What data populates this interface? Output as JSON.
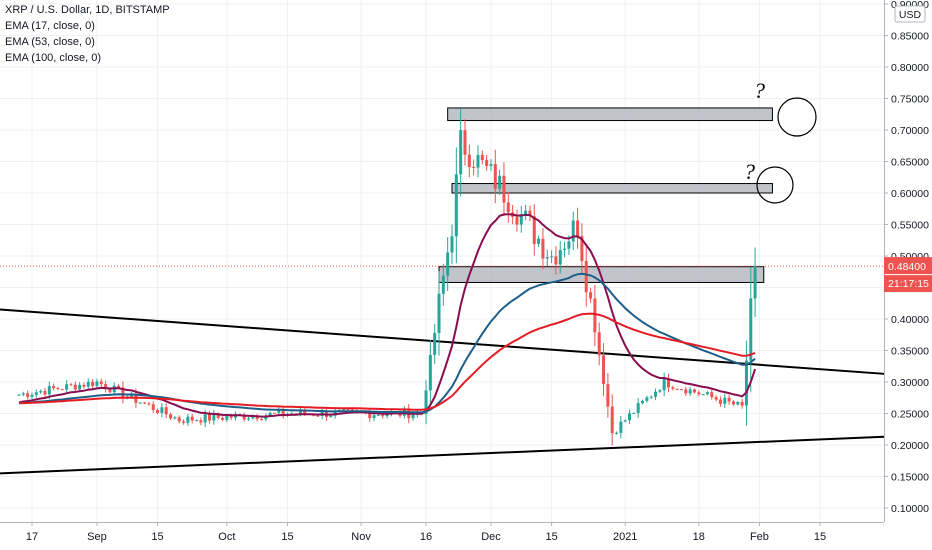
{
  "legend": {
    "symbol": "XRP / U.S. Dollar, 1D, BITSTAMP",
    "ema1": "EMA (17, close, 0)",
    "ema2": "EMA (53, close, 0)",
    "ema3": "EMA (100, close, 0)"
  },
  "currency_badge": "USD",
  "price_label": "0.48400",
  "countdown_label": "21:17:15",
  "annotations": [
    "?",
    "?"
  ],
  "colors": {
    "up": "#26a69a",
    "down": "#ef5350",
    "ema17": "#880e4f",
    "ema53": "#1e5f8a",
    "ema100": "#e51c23",
    "zone": "#b2b5be",
    "trendline": "#000000"
  },
  "chart_data": {
    "type": "candlestick",
    "title": "XRP / U.S. Dollar, 1D, BITSTAMP",
    "ylim": [
      0.09,
      0.9
    ],
    "y_ticks": [
      "0.90000",
      "0.85000",
      "0.80000",
      "0.75000",
      "0.70000",
      "0.65000",
      "0.60000",
      "0.55000",
      "0.50000",
      "0.45000",
      "0.40000",
      "0.35000",
      "0.30000",
      "0.25000",
      "0.20000",
      "0.15000",
      "0.10000"
    ],
    "x_ticks": [
      "17",
      "Sep",
      "15",
      "Oct",
      "15",
      "Nov",
      "16",
      "Dec",
      "15",
      "2021",
      "18",
      "Feb",
      "15"
    ],
    "x_range": [
      "2020-08-14",
      "2021-02-24"
    ],
    "last_price": 0.484,
    "key_points": [
      {
        "date": "2020-08-14",
        "close": 0.28
      },
      {
        "date": "2020-09-01",
        "close": 0.3
      },
      {
        "date": "2020-09-20",
        "close": 0.24
      },
      {
        "date": "2020-10-15",
        "close": 0.25
      },
      {
        "date": "2020-11-15",
        "close": 0.25
      },
      {
        "date": "2020-11-22",
        "close": 0.55
      },
      {
        "date": "2020-11-24",
        "close": 0.68
      },
      {
        "date": "2020-12-02",
        "close": 0.62
      },
      {
        "date": "2020-12-15",
        "close": 0.5
      },
      {
        "date": "2020-12-21",
        "close": 0.55
      },
      {
        "date": "2020-12-29",
        "close": 0.22
      },
      {
        "date": "2021-01-10",
        "close": 0.3
      },
      {
        "date": "2021-01-28",
        "close": 0.26
      },
      {
        "date": "2021-01-31",
        "close": 0.484
      }
    ],
    "indicators": [
      {
        "name": "EMA (17, close, 0)"
      },
      {
        "name": "EMA (53, close, 0)"
      },
      {
        "name": "EMA (100, close, 0)"
      }
    ],
    "zones": [
      {
        "from": "2020-11-21",
        "to": "2021-02-04",
        "low": 0.715,
        "high": 0.735
      },
      {
        "from": "2020-11-22",
        "to": "2021-02-04",
        "low": 0.6,
        "high": 0.615
      },
      {
        "from": "2020-11-19",
        "to": "2021-02-02",
        "low": 0.458,
        "high": 0.483
      }
    ],
    "trendlines": [
      {
        "from": [
          "2020-08-14",
          0.415
        ],
        "to": [
          "2021-02-24",
          0.313
        ]
      },
      {
        "from": [
          "2020-08-14",
          0.155
        ],
        "to": [
          "2021-02-24",
          0.213
        ]
      }
    ]
  }
}
